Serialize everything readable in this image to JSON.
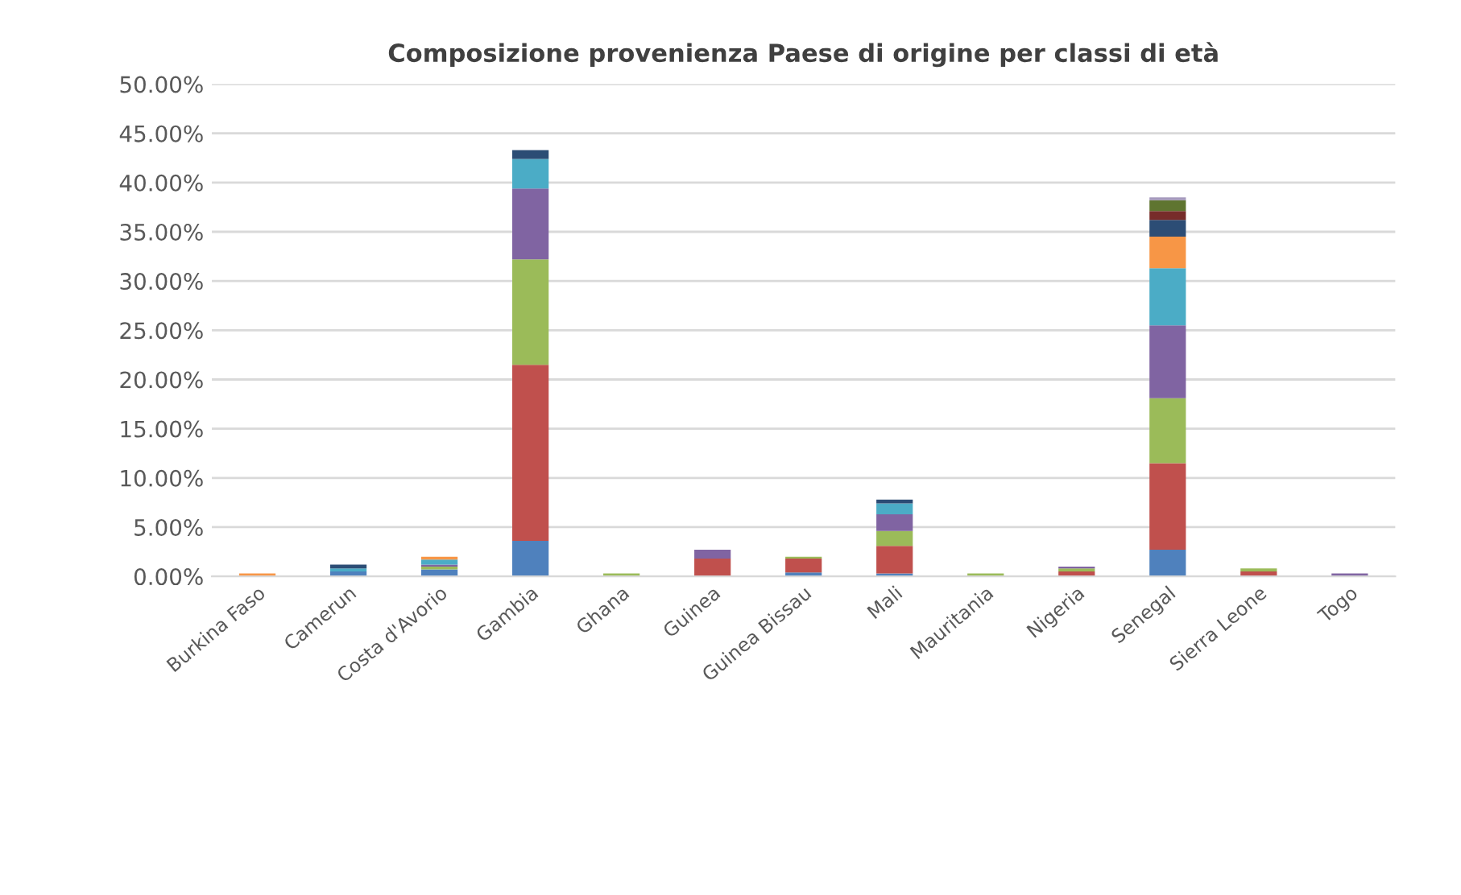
{
  "chart_data": {
    "type": "bar",
    "title": "Composizione provenienza Paese di origine per classi di età",
    "stacked": true,
    "categories": [
      "Burkina Faso",
      "Camerun",
      "Costa d'Avorio",
      "Gambia",
      "Ghana",
      "Guinea",
      "Guinea Bissau",
      "Mali",
      "Mauritania",
      "Nigeria",
      "Senegal",
      "Sierra Leone",
      "Togo"
    ],
    "series": [
      {
        "color": "#4f81bd",
        "values": [
          null,
          0.5,
          0.7,
          3.6,
          null,
          null,
          0.4,
          0.3,
          null,
          null,
          2.7,
          null,
          null
        ]
      },
      {
        "color": "#c0504d",
        "values": [
          null,
          null,
          null,
          17.9,
          null,
          1.8,
          1.4,
          2.8,
          null,
          0.5,
          8.8,
          0.5,
          null
        ]
      },
      {
        "color": "#9bbb59",
        "values": [
          null,
          null,
          0.3,
          10.7,
          0.3,
          null,
          0.2,
          1.5,
          0.3,
          0.3,
          6.6,
          0.3,
          null
        ]
      },
      {
        "color": "#8064a2",
        "values": [
          null,
          null,
          0.2,
          7.2,
          null,
          0.9,
          null,
          1.7,
          null,
          0.2,
          7.4,
          null,
          0.3
        ]
      },
      {
        "color": "#4bacc6",
        "values": [
          null,
          0.3,
          0.5,
          3.0,
          null,
          null,
          null,
          1.1,
          null,
          null,
          5.8,
          null,
          null
        ]
      },
      {
        "color": "#f79646",
        "values": [
          0.3,
          null,
          0.3,
          null,
          null,
          null,
          null,
          null,
          null,
          null,
          3.2,
          null,
          null
        ]
      },
      {
        "color": "#2c4d75",
        "values": [
          null,
          0.4,
          null,
          0.9,
          null,
          null,
          null,
          0.4,
          null,
          null,
          1.7,
          null,
          null
        ]
      },
      {
        "color": "#772c2a",
        "values": [
          null,
          null,
          null,
          null,
          null,
          null,
          null,
          null,
          null,
          null,
          0.9,
          null,
          null
        ]
      },
      {
        "color": "#5f7530",
        "values": [
          null,
          null,
          null,
          null,
          null,
          null,
          null,
          null,
          null,
          null,
          1.1,
          null,
          null
        ]
      },
      {
        "color": "#a599bd",
        "values": [
          null,
          null,
          null,
          null,
          null,
          null,
          null,
          null,
          null,
          null,
          0.3,
          null,
          null
        ]
      }
    ],
    "ylim": [
      0,
      50
    ],
    "yticks": [
      {
        "value": 0,
        "label": "0.00%"
      },
      {
        "value": 5,
        "label": "5.00%"
      },
      {
        "value": 10,
        "label": "10.00%"
      },
      {
        "value": 15,
        "label": "15.00%"
      },
      {
        "value": 20,
        "label": "20.00%"
      },
      {
        "value": 25,
        "label": "25.00%"
      },
      {
        "value": 30,
        "label": "30.00%"
      },
      {
        "value": 35,
        "label": "35.00%"
      },
      {
        "value": 40,
        "label": "40.00%"
      },
      {
        "value": 45,
        "label": "45.00%"
      },
      {
        "value": 50,
        "label": "50.00%"
      }
    ],
    "grid": "y"
  }
}
